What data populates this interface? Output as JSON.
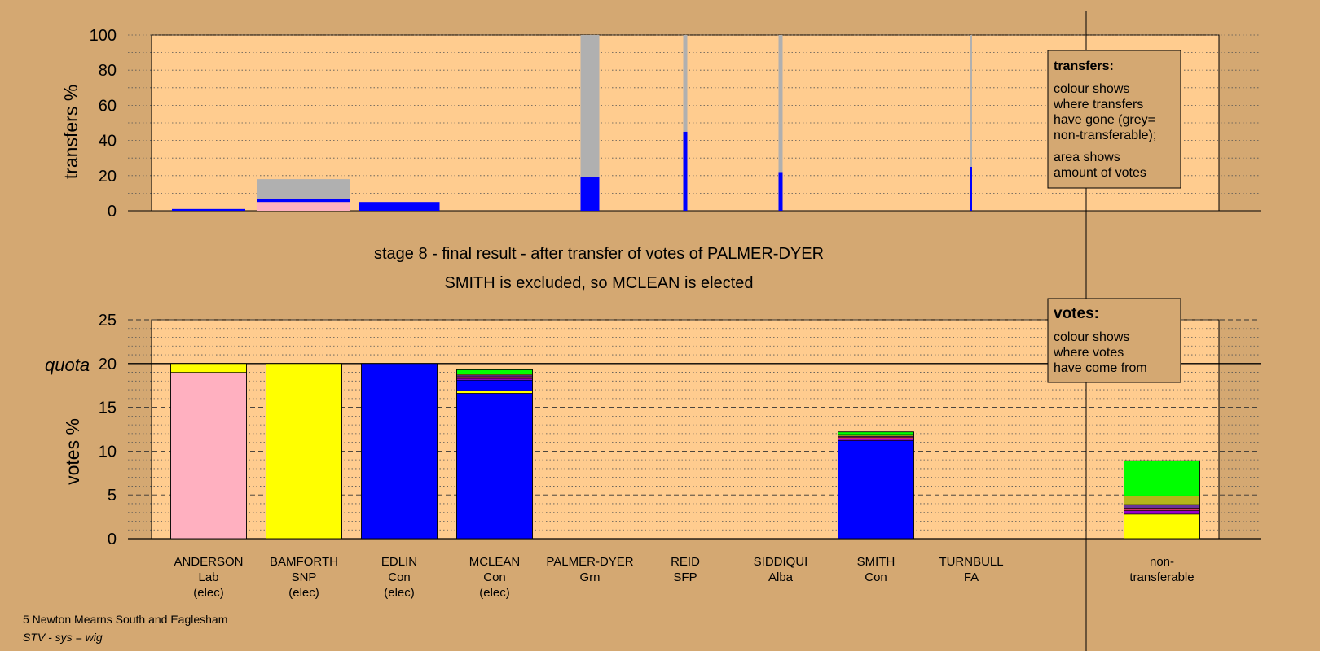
{
  "colors": {
    "page_bg": "#d4a872",
    "plot_bg": "#ffcc8f",
    "Lab": "#ffb0c0",
    "SNP": "#ffff00",
    "Con": "#0000ff",
    "Grn": "#00ff00",
    "SFP": "#9900cc",
    "Alba": "#cc3366",
    "FA": "#663399",
    "olive": "#b5b51a",
    "non_transferable": "#b0b0b0"
  },
  "header": {
    "stage_line": "stage 8 - final result - after transfer of votes of PALMER-DYER",
    "result_line": "SMITH is excluded, so MCLEAN is elected"
  },
  "footer": {
    "ward": "5 Newton Mearns South and Eaglesham",
    "system": "STV - sys = wig"
  },
  "legends": {
    "transfers": {
      "title": "transfers:",
      "line1": "colour shows",
      "line2": "where transfers",
      "line3": "have gone (grey=",
      "line4": "non-transferable);",
      "line5": "area shows",
      "line6": "amount of votes"
    },
    "votes": {
      "title": "votes:",
      "line1": "colour shows",
      "line2": "where votes",
      "line3": "have come from"
    }
  },
  "chart_data": [
    {
      "type": "bar",
      "panel": "transfers",
      "ylabel": "transfers %",
      "ylim": [
        0,
        100
      ],
      "yticks": [
        0,
        20,
        40,
        60,
        80,
        100
      ],
      "categories": [
        "ANDERSON",
        "BAMFORTH",
        "EDLIN",
        "MCLEAN",
        "PALMER-DYER",
        "REID",
        "SIDDIQUI",
        "SMITH",
        "TURNBULL"
      ],
      "bars": [
        {
          "from": "ANDERSON",
          "width_pct": 0.8,
          "segments": [
            {
              "party": "Con",
              "value": 1
            }
          ]
        },
        {
          "from": "BAMFORTH",
          "width_pct": 18,
          "segments": [
            {
              "party": "Lab",
              "value": 5
            },
            {
              "party": "Con",
              "value": 2
            },
            {
              "party": "non_transferable",
              "value": 11
            }
          ]
        },
        {
          "from": "EDLIN",
          "width_pct": 4.5,
          "segments": [
            {
              "party": "Con",
              "value": 5
            }
          ]
        },
        {
          "from": "PALMER-DYER",
          "width_pct": 100,
          "segments": [
            {
              "party": "Con",
              "value": 19
            },
            {
              "party": "non_transferable",
              "value": 81
            }
          ]
        },
        {
          "from": "REID",
          "width_pct": 100,
          "segments": [
            {
              "party": "Con",
              "value": 45
            },
            {
              "party": "non_transferable",
              "value": 55
            }
          ]
        },
        {
          "from": "SIDDIQUI",
          "width_pct": 100,
          "segments": [
            {
              "party": "Con",
              "value": 22
            },
            {
              "party": "non_transferable",
              "value": 78
            }
          ]
        },
        {
          "from": "TURNBULL",
          "width_pct": 100,
          "segments": [
            {
              "party": "Con",
              "value": 25
            },
            {
              "party": "non_transferable",
              "value": 75
            }
          ]
        }
      ]
    },
    {
      "type": "bar",
      "panel": "votes",
      "ylabel": "votes %",
      "ylim": [
        0,
        25
      ],
      "yticks": [
        0,
        5,
        10,
        15,
        20,
        25
      ],
      "quota": 20,
      "quota_label": "quota",
      "candidates": [
        {
          "name": "ANDERSON",
          "party": "Lab",
          "status": "(elec)",
          "segments": [
            {
              "party": "Lab",
              "value": 19.0
            },
            {
              "party": "SNP",
              "value": 1.0
            }
          ]
        },
        {
          "name": "BAMFORTH",
          "party": "SNP",
          "status": "(elec)",
          "segments": [
            {
              "party": "SNP",
              "value": 20.0
            }
          ]
        },
        {
          "name": "EDLIN",
          "party": "Con",
          "status": "(elec)",
          "segments": [
            {
              "party": "Con",
              "value": 20.0
            }
          ]
        },
        {
          "name": "MCLEAN",
          "party": "Con",
          "status": "(elec)",
          "segments": [
            {
              "party": "Con",
              "value": 16.6
            },
            {
              "party": "SNP",
              "value": 0.3
            },
            {
              "party": "Con",
              "value": 1.2
            },
            {
              "party": "SFP",
              "value": 0.2
            },
            {
              "party": "Alba",
              "value": 0.2
            },
            {
              "party": "FA",
              "value": 0.2
            },
            {
              "party": "olive",
              "value": 0.1
            },
            {
              "party": "Grn",
              "value": 0.5
            }
          ]
        },
        {
          "name": "PALMER-DYER",
          "party": "Grn",
          "status": "",
          "segments": []
        },
        {
          "name": "REID",
          "party": "SFP",
          "status": "",
          "segments": []
        },
        {
          "name": "SIDDIQUI",
          "party": "Alba",
          "status": "",
          "segments": []
        },
        {
          "name": "SMITH",
          "party": "Con",
          "status": "",
          "segments": [
            {
              "party": "Con",
              "value": 11.2
            },
            {
              "party": "SFP",
              "value": 0.2
            },
            {
              "party": "Alba",
              "value": 0.2
            },
            {
              "party": "FA",
              "value": 0.1
            },
            {
              "party": "olive",
              "value": 0.2
            },
            {
              "party": "Grn",
              "value": 0.3
            }
          ]
        },
        {
          "name": "TURNBULL",
          "party": "FA",
          "status": "",
          "segments": []
        }
      ],
      "non_transferable": {
        "line1": "non-",
        "line2": "transferable",
        "segments": [
          {
            "party": "SNP",
            "value": 2.8
          },
          {
            "party": "SFP",
            "value": 0.4
          },
          {
            "party": "Alba",
            "value": 0.3
          },
          {
            "party": "FA",
            "value": 0.4
          },
          {
            "party": "olive",
            "value": 1.0
          },
          {
            "party": "Grn",
            "value": 4.0
          }
        ]
      }
    }
  ]
}
